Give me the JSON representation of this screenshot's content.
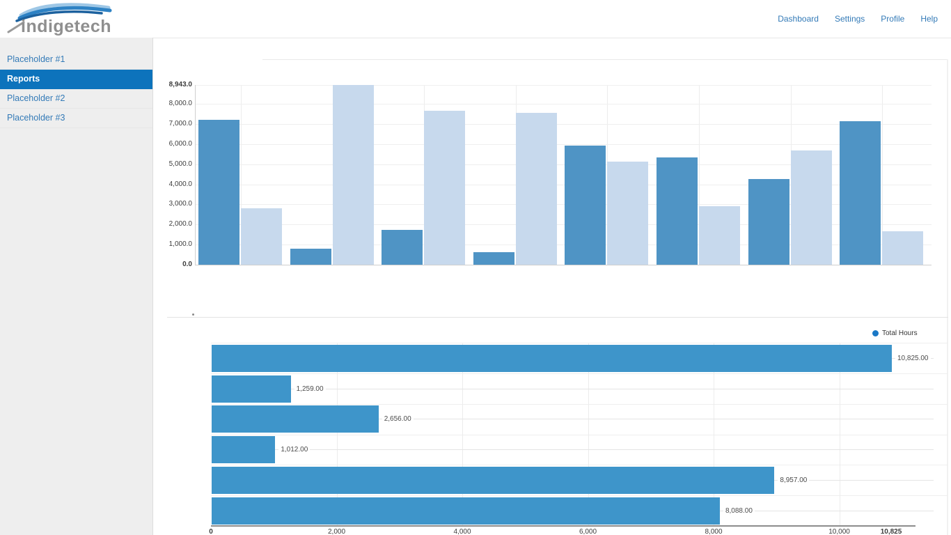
{
  "brand": {
    "name": "indigetech"
  },
  "nav": {
    "items": [
      "Dashboard",
      "Settings",
      "Profile",
      "Help"
    ]
  },
  "sidebar": {
    "items": [
      {
        "label": "Placeholder #1",
        "selected": false
      },
      {
        "label": "Reports",
        "selected": true
      },
      {
        "label": "Placeholder #2",
        "selected": false
      },
      {
        "label": "Placeholder #3",
        "selected": false
      }
    ]
  },
  "colors": {
    "link_blue": "#337ab7",
    "selected_item_bg": "#0d73bc",
    "series_dark": "#4f94c5",
    "series_light": "#c7d9ed",
    "horizontal_bar": "#3e95ca",
    "legend_dot": "#1a78c6"
  },
  "chart_data": [
    {
      "type": "bar",
      "orientation": "vertical",
      "grid": true,
      "ylim": [
        0,
        8943
      ],
      "series": [
        {
          "name": "dark-blue-series",
          "color": "#4f94c5",
          "values": [
            7200,
            780,
            1740,
            640,
            5920,
            5340,
            4250,
            7140
          ]
        },
        {
          "name": "light-blue-series",
          "color": "#c7d9ed",
          "values": [
            2820,
            8943,
            7660,
            7560,
            5120,
            2920,
            5670,
            1650
          ]
        }
      ],
      "yticks": [
        {
          "label": "8,943.0",
          "value": 8943,
          "bold": true
        },
        {
          "label": "8,000.0",
          "value": 8000,
          "bold": false
        },
        {
          "label": "7,000.0",
          "value": 7000,
          "bold": false
        },
        {
          "label": "6,000.0",
          "value": 6000,
          "bold": false
        },
        {
          "label": "5,000.0",
          "value": 5000,
          "bold": false
        },
        {
          "label": "4,000.0",
          "value": 4000,
          "bold": false
        },
        {
          "label": "3,000.0",
          "value": 3000,
          "bold": false
        },
        {
          "label": "2,000.0",
          "value": 2000,
          "bold": false
        },
        {
          "label": "1,000.0",
          "value": 1000,
          "bold": false
        },
        {
          "label": "0.0",
          "value": 0,
          "bold": true
        }
      ]
    },
    {
      "type": "bar",
      "orientation": "horizontal",
      "grid": true,
      "legend": {
        "label": "Total Hours",
        "color": "#1a78c6",
        "position": "top-right"
      },
      "xlim": [
        0,
        10825
      ],
      "values": [
        10825,
        1259,
        2656,
        1012,
        8957,
        8088
      ],
      "value_labels": [
        "10,825.00",
        "1,259.00",
        "2,656.00",
        "1,012.00",
        "8,957.00",
        "8,088.00"
      ],
      "bar_color": "#3e95ca",
      "xticks": [
        {
          "label": "0",
          "value": 0,
          "bold": true
        },
        {
          "label": "2,000",
          "value": 2000,
          "bold": false
        },
        {
          "label": "4,000",
          "value": 4000,
          "bold": false
        },
        {
          "label": "6,000",
          "value": 6000,
          "bold": false
        },
        {
          "label": "8,000",
          "value": 8000,
          "bold": false
        },
        {
          "label": "10,000",
          "value": 10000,
          "bold": false
        },
        {
          "label": "10,825",
          "value": 10825,
          "bold": true
        }
      ]
    }
  ]
}
